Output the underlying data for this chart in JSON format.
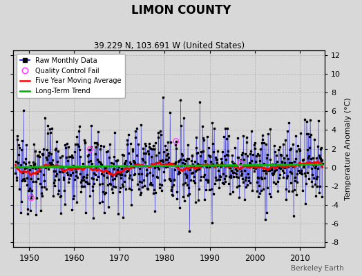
{
  "title": "LIMON COUNTY",
  "subtitle": "39.229 N, 103.691 W (United States)",
  "ylabel": "Temperature Anomaly (°C)",
  "xlim": [
    1946.5,
    2015.5
  ],
  "ylim": [
    -8.5,
    12.5
  ],
  "yticks": [
    -8,
    -6,
    -4,
    -2,
    0,
    2,
    4,
    6,
    8,
    10,
    12
  ],
  "xticks": [
    1950,
    1960,
    1970,
    1980,
    1990,
    2000,
    2010
  ],
  "background_color": "#d8d8d8",
  "plot_bg_color": "#d8d8d8",
  "grid_color": "#b0b0b0",
  "raw_line_color": "#0000dd",
  "raw_dot_color": "#000000",
  "ma_color": "#ff0000",
  "trend_color": "#00bb00",
  "qc_fail_color": "#ff44ff",
  "watermark": "Berkeley Earth",
  "seed": 12345,
  "start_year": 1947.0,
  "end_year": 2015.0,
  "n_months": 816
}
